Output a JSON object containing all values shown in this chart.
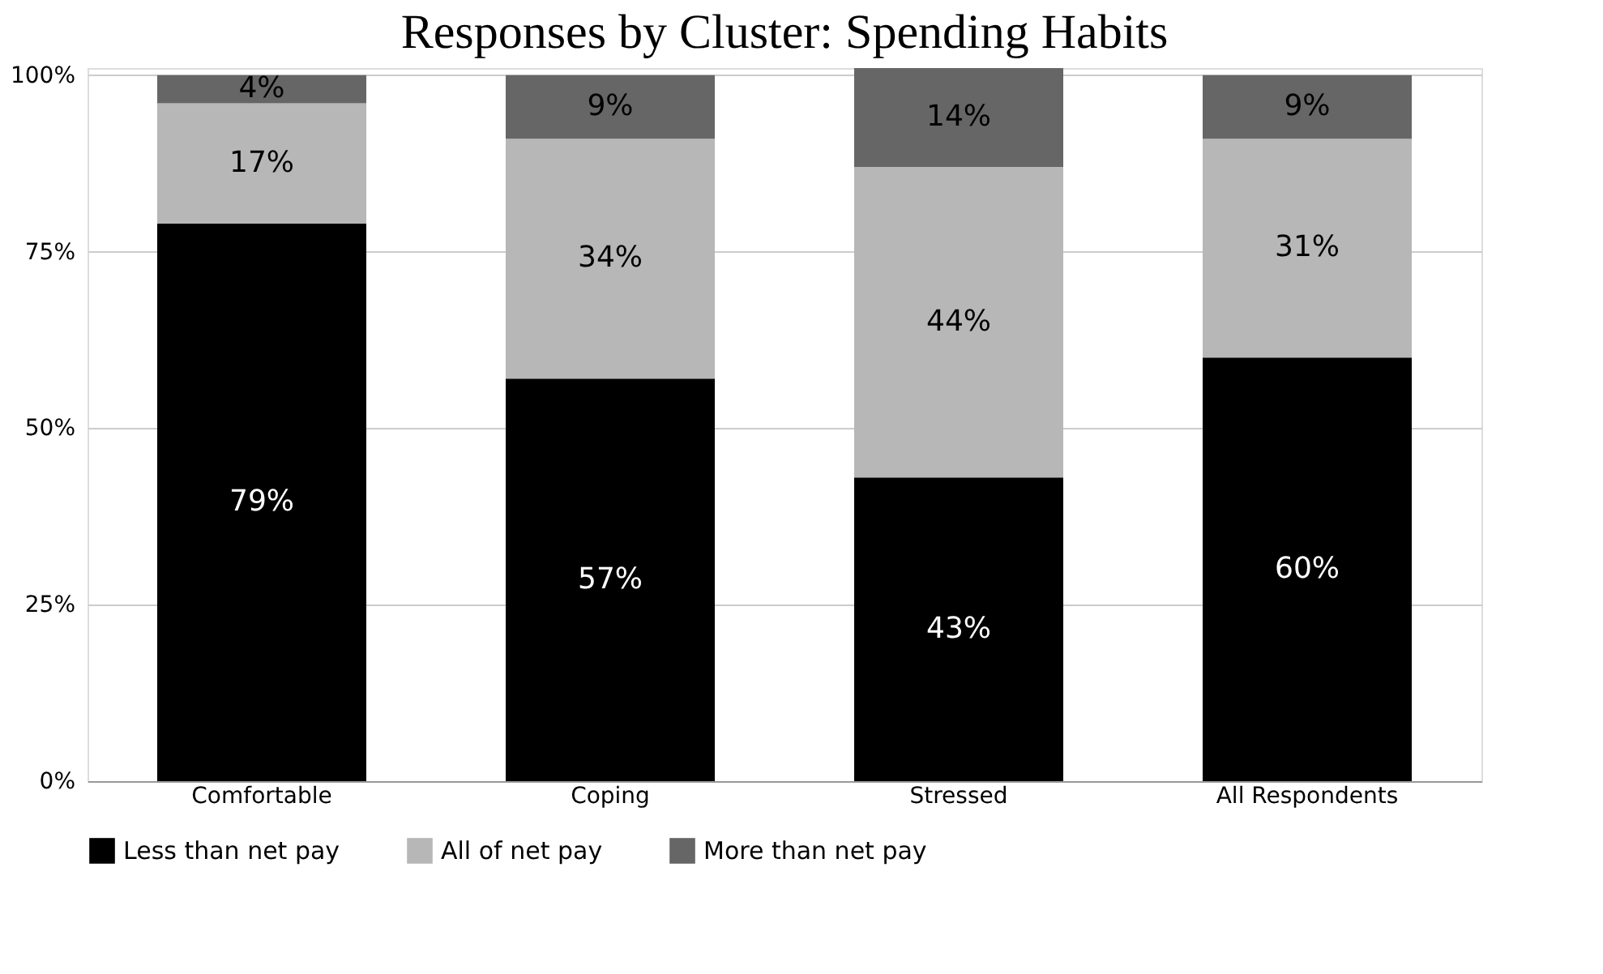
{
  "chart_data": {
    "type": "bar",
    "title": "Responses by Cluster: Spending Habits",
    "categories": [
      "Comfortable",
      "Coping",
      "Stressed",
      "All Respondents"
    ],
    "stacked": true,
    "series": [
      {
        "name": "Less than net pay",
        "color": "#000000",
        "values": [
          79,
          57,
          43,
          60
        ],
        "value_labels": [
          "79%",
          "57%",
          "43%",
          "60%"
        ]
      },
      {
        "name": "All of net pay",
        "color": "#b7b7b7",
        "values": [
          17,
          34,
          44,
          31
        ],
        "value_labels": [
          "17%",
          "34%",
          "44%",
          "31%"
        ]
      },
      {
        "name": "More than net pay",
        "color": "#666666",
        "values": [
          4,
          9,
          14,
          9
        ],
        "value_labels": [
          "4%",
          "9%",
          "14%",
          "9%"
        ]
      }
    ],
    "ylim": [
      0,
      101
    ],
    "yticks": [
      {
        "value": 0,
        "label": "0%"
      },
      {
        "value": 25,
        "label": "25%"
      },
      {
        "value": 50,
        "label": "50%"
      },
      {
        "value": 75,
        "label": "75%"
      },
      {
        "value": 100,
        "label": "100%"
      }
    ],
    "grid": "y",
    "legend": "bottom"
  }
}
